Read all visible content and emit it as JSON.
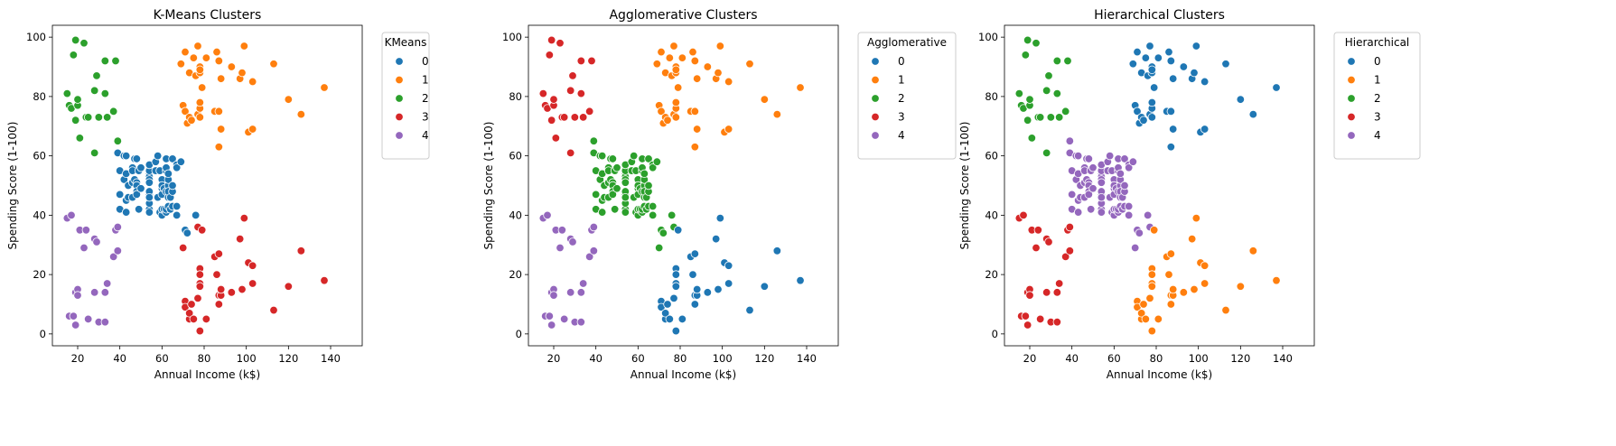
{
  "chart_data": [
    {
      "type": "scatter",
      "title": "K-Means Clusters",
      "xlabel": "Annual Income (k$)",
      "ylabel": "Spending Score (1-100)",
      "xlim": [
        8,
        155
      ],
      "ylim": [
        -4,
        104
      ],
      "xticks": [
        20,
        40,
        60,
        80,
        100,
        120,
        140
      ],
      "yticks": [
        0,
        20,
        40,
        60,
        80,
        100
      ],
      "legend": {
        "title": "KMeans",
        "entries": [
          "0",
          "1",
          "2",
          "3",
          "4"
        ],
        "placement": "outside-top-right"
      },
      "label_key": "kmeans"
    },
    {
      "type": "scatter",
      "title": "Agglomerative Clusters",
      "xlabel": "Annual Income (k$)",
      "ylabel": "Spending Score (1-100)",
      "xlim": [
        8,
        155
      ],
      "ylim": [
        -4,
        104
      ],
      "xticks": [
        20,
        40,
        60,
        80,
        100,
        120,
        140
      ],
      "yticks": [
        0,
        20,
        40,
        60,
        80,
        100
      ],
      "legend": {
        "title": "Agglomerative",
        "entries": [
          "0",
          "1",
          "2",
          "3",
          "4"
        ],
        "placement": "outside-top-right"
      },
      "label_key": "agglomerative"
    },
    {
      "type": "scatter",
      "title": "Hierarchical Clusters",
      "xlabel": "Annual Income (k$)",
      "ylabel": "Spending Score (1-100)",
      "xlim": [
        8,
        155
      ],
      "ylim": [
        -4,
        104
      ],
      "xticks": [
        20,
        40,
        60,
        80,
        100,
        120,
        140
      ],
      "yticks": [
        0,
        20,
        40,
        60,
        80,
        100
      ],
      "legend": {
        "title": "Hierarchical",
        "entries": [
          "0",
          "1",
          "2",
          "3",
          "4"
        ],
        "placement": "outside-top-right"
      },
      "label_key": "hierarchical"
    }
  ],
  "palette": [
    "#1f77b4",
    "#ff7f0e",
    "#2ca02c",
    "#d62728",
    "#9467bd"
  ],
  "points": {
    "income": [
      15,
      15,
      16,
      16,
      17,
      17,
      18,
      18,
      19,
      19,
      19,
      19,
      20,
      20,
      20,
      20,
      21,
      21,
      23,
      23,
      24,
      24,
      25,
      25,
      28,
      28,
      28,
      28,
      29,
      29,
      30,
      30,
      33,
      33,
      33,
      33,
      34,
      34,
      37,
      37,
      38,
      38,
      39,
      39,
      39,
      39,
      40,
      40,
      40,
      40,
      42,
      42,
      43,
      43,
      43,
      43,
      44,
      44,
      46,
      46,
      46,
      46,
      47,
      47,
      48,
      48,
      48,
      48,
      48,
      48,
      49,
      49,
      50,
      50,
      54,
      54,
      54,
      54,
      54,
      54,
      54,
      54,
      54,
      54,
      54,
      54,
      57,
      57,
      58,
      58,
      59,
      59,
      60,
      60,
      60,
      60,
      60,
      60,
      61,
      61,
      62,
      62,
      62,
      62,
      62,
      62,
      63,
      63,
      63,
      63,
      63,
      63,
      64,
      64,
      65,
      65,
      65,
      65,
      67,
      67,
      67,
      67,
      69,
      69,
      70,
      70,
      71,
      71,
      71,
      71,
      71,
      71,
      72,
      72,
      73,
      73,
      73,
      73,
      74,
      74,
      75,
      75,
      76,
      76,
      77,
      77,
      77,
      77,
      78,
      78,
      78,
      78,
      78,
      78,
      78,
      78,
      78,
      78,
      78,
      78,
      79,
      79,
      81,
      81,
      85,
      85,
      86,
      86,
      87,
      87,
      87,
      87,
      87,
      87,
      88,
      88,
      88,
      88,
      93,
      93,
      97,
      97,
      98,
      98,
      99,
      99,
      101,
      101,
      103,
      103,
      103,
      103,
      113,
      113,
      120,
      120,
      126,
      126,
      137,
      137
    ],
    "score": [
      39,
      81,
      6,
      77,
      40,
      76,
      6,
      94,
      3,
      72,
      14,
      99,
      15,
      77,
      13,
      79,
      35,
      66,
      29,
      98,
      35,
      73,
      5,
      73,
      14,
      82,
      32,
      61,
      31,
      87,
      4,
      73,
      4,
      92,
      14,
      81,
      17,
      73,
      26,
      75,
      35,
      92,
      36,
      61,
      28,
      65,
      55,
      47,
      42,
      42,
      52,
      60,
      54,
      60,
      45,
      41,
      50,
      46,
      51,
      46,
      56,
      55,
      52,
      59,
      51,
      59,
      50,
      48,
      59,
      47,
      55,
      42,
      49,
      56,
      47,
      54,
      53,
      48,
      52,
      42,
      51,
      55,
      41,
      44,
      57,
      46,
      58,
      55,
      60,
      46,
      55,
      41,
      49,
      40,
      42,
      52,
      47,
      50,
      42,
      49,
      41,
      48,
      59,
      55,
      56,
      42,
      50,
      46,
      43,
      48,
      52,
      54,
      42,
      46,
      48,
      50,
      43,
      59,
      43,
      57,
      56,
      40,
      58,
      91,
      29,
      77,
      35,
      95,
      11,
      75,
      9,
      75,
      34,
      71,
      5,
      88,
      7,
      73,
      10,
      72,
      5,
      93,
      40,
      87,
      12,
      97,
      36,
      74,
      22,
      90,
      17,
      88,
      20,
      76,
      16,
      89,
      1,
      78,
      1,
      73,
      35,
      83,
      5,
      93,
      26,
      75,
      20,
      95,
      27,
      63,
      13,
      75,
      10,
      92,
      13,
      86,
      15,
      69,
      14,
      90,
      32,
      86,
      15,
      88,
      39,
      97,
      24,
      68,
      17,
      85,
      23,
      69,
      8,
      91,
      16,
      79,
      28,
      74,
      18,
      83
    ]
  },
  "labels": {
    "kmeans": [
      4,
      2,
      4,
      2,
      4,
      2,
      4,
      2,
      4,
      2,
      4,
      2,
      4,
      2,
      4,
      2,
      4,
      2,
      4,
      2,
      4,
      2,
      4,
      2,
      4,
      2,
      4,
      2,
      4,
      2,
      4,
      2,
      4,
      2,
      4,
      2,
      4,
      2,
      4,
      2,
      4,
      2,
      4,
      0,
      4,
      2,
      0,
      0,
      0,
      0,
      0,
      0,
      0,
      0,
      0,
      0,
      0,
      0,
      0,
      0,
      0,
      0,
      0,
      0,
      0,
      0,
      0,
      0,
      0,
      0,
      0,
      0,
      0,
      0,
      0,
      0,
      0,
      0,
      0,
      0,
      0,
      0,
      0,
      0,
      0,
      0,
      0,
      0,
      0,
      0,
      0,
      0,
      0,
      0,
      0,
      0,
      0,
      0,
      0,
      0,
      0,
      0,
      0,
      0,
      0,
      0,
      0,
      0,
      0,
      0,
      0,
      0,
      0,
      0,
      0,
      0,
      0,
      0,
      0,
      0,
      0,
      0,
      0,
      1,
      3,
      1,
      0,
      1,
      3,
      1,
      3,
      1,
      0,
      1,
      3,
      1,
      3,
      1,
      3,
      1,
      3,
      1,
      0,
      1,
      3,
      1,
      3,
      1,
      3,
      1,
      3,
      1,
      3,
      1,
      3,
      1,
      3,
      1,
      3,
      1,
      3,
      1,
      3,
      1,
      3,
      1,
      3,
      1,
      3,
      1,
      3,
      1,
      3,
      1,
      3,
      1,
      3,
      1,
      3,
      1,
      3,
      1,
      3,
      1,
      3,
      1,
      3,
      1,
      3,
      1,
      3,
      1,
      3,
      1,
      3,
      1,
      3,
      1,
      3,
      1,
      3,
      1,
      3,
      1,
      3,
      1,
      3,
      1,
      3,
      1
    ],
    "agglomerative": [
      4,
      3,
      4,
      3,
      4,
      3,
      4,
      3,
      4,
      3,
      4,
      3,
      4,
      3,
      4,
      3,
      4,
      3,
      4,
      3,
      4,
      3,
      4,
      3,
      4,
      3,
      4,
      3,
      4,
      3,
      4,
      3,
      4,
      3,
      4,
      3,
      4,
      3,
      4,
      3,
      4,
      3,
      4,
      2,
      4,
      2,
      2,
      2,
      2,
      2,
      2,
      2,
      2,
      2,
      2,
      2,
      2,
      2,
      2,
      2,
      2,
      2,
      2,
      2,
      2,
      2,
      2,
      2,
      2,
      2,
      2,
      2,
      2,
      2,
      2,
      2,
      2,
      2,
      2,
      2,
      2,
      2,
      2,
      2,
      2,
      2,
      2,
      2,
      2,
      2,
      2,
      2,
      2,
      2,
      2,
      2,
      2,
      2,
      2,
      2,
      2,
      2,
      2,
      2,
      2,
      2,
      2,
      2,
      2,
      2,
      2,
      2,
      2,
      2,
      2,
      2,
      2,
      2,
      2,
      2,
      2,
      2,
      2,
      1,
      2,
      1,
      2,
      1,
      0,
      1,
      0,
      1,
      2,
      1,
      0,
      1,
      0,
      1,
      0,
      1,
      0,
      1,
      2,
      1,
      0,
      1,
      2,
      1,
      0,
      1,
      0,
      1,
      0,
      1,
      0,
      1,
      0,
      1,
      0,
      1,
      0,
      1,
      0,
      1,
      0,
      1,
      0,
      1,
      0,
      1,
      0,
      1,
      0,
      1,
      0,
      1,
      0,
      1,
      0,
      1,
      0,
      1,
      0,
      1,
      0,
      1,
      0,
      1,
      0,
      1,
      0,
      1,
      0,
      1,
      0,
      1,
      0,
      1,
      0,
      1,
      0,
      1,
      0,
      1,
      0,
      1,
      0,
      1,
      0,
      1
    ],
    "hierarchical": [
      3,
      2,
      3,
      2,
      3,
      2,
      3,
      2,
      3,
      2,
      3,
      2,
      3,
      2,
      3,
      2,
      3,
      2,
      3,
      2,
      3,
      2,
      3,
      2,
      3,
      2,
      3,
      2,
      3,
      2,
      3,
      2,
      3,
      2,
      3,
      2,
      3,
      2,
      3,
      2,
      3,
      2,
      3,
      4,
      3,
      4,
      4,
      4,
      4,
      4,
      4,
      4,
      4,
      4,
      4,
      4,
      4,
      4,
      4,
      4,
      4,
      4,
      4,
      4,
      4,
      4,
      4,
      4,
      4,
      4,
      4,
      4,
      4,
      4,
      4,
      4,
      4,
      4,
      4,
      4,
      4,
      4,
      4,
      4,
      4,
      4,
      4,
      4,
      4,
      4,
      4,
      4,
      4,
      4,
      4,
      4,
      4,
      4,
      4,
      4,
      4,
      4,
      4,
      4,
      4,
      4,
      4,
      4,
      4,
      4,
      4,
      4,
      4,
      4,
      4,
      4,
      4,
      4,
      4,
      4,
      4,
      4,
      4,
      0,
      4,
      0,
      4,
      0,
      1,
      0,
      1,
      0,
      4,
      0,
      1,
      0,
      1,
      0,
      1,
      0,
      1,
      0,
      4,
      0,
      1,
      0,
      4,
      0,
      1,
      0,
      1,
      0,
      1,
      0,
      1,
      0,
      1,
      0,
      1,
      0,
      1,
      0,
      1,
      0,
      1,
      0,
      1,
      0,
      1,
      0,
      1,
      0,
      1,
      0,
      1,
      0,
      1,
      0,
      1,
      0,
      1,
      0,
      1,
      0,
      1,
      0,
      1,
      0,
      1,
      0,
      1,
      0,
      1,
      0,
      1,
      0,
      1,
      0,
      1,
      0,
      1,
      0,
      1,
      0,
      1,
      0,
      1,
      0,
      1,
      0
    ]
  }
}
